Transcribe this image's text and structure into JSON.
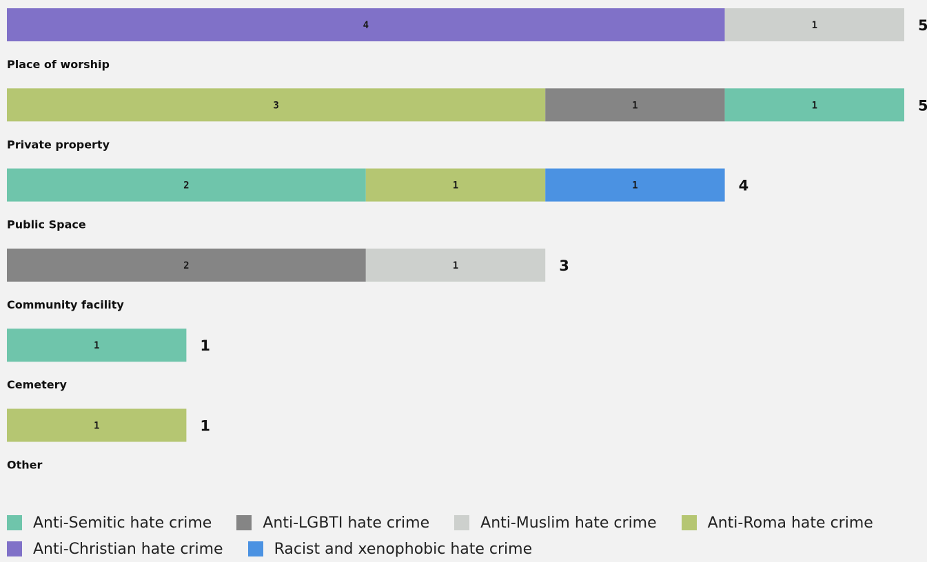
{
  "chart_data": {
    "type": "bar",
    "orientation": "horizontal",
    "stacked": true,
    "categories": [
      "Place of worship",
      "Private property",
      "Public Space",
      "Community facility",
      "Cemetery",
      "Other"
    ],
    "totals": [
      5,
      5,
      4,
      3,
      1,
      1
    ],
    "series": [
      {
        "name": "Anti-Semitic hate crime",
        "color": "#6fc5ab",
        "values": [
          0,
          1,
          2,
          0,
          1,
          0
        ]
      },
      {
        "name": "Anti-LGBTI hate crime",
        "color": "#858585",
        "values": [
          0,
          1,
          0,
          2,
          0,
          0
        ]
      },
      {
        "name": "Anti-Muslim hate crime",
        "color": "#cdd0cd",
        "values": [
          1,
          0,
          0,
          1,
          0,
          0
        ]
      },
      {
        "name": "Anti-Roma hate crime",
        "color": "#b5c672",
        "values": [
          0,
          3,
          1,
          0,
          0,
          1
        ]
      },
      {
        "name": "Anti-Christian hate crime",
        "color": "#8071c8",
        "values": [
          4,
          0,
          0,
          0,
          0,
          0
        ]
      },
      {
        "name": "Racist and xenophobic hate crime",
        "color": "#4b92e2",
        "values": [
          0,
          0,
          1,
          0,
          0,
          0
        ]
      }
    ],
    "segment_order": [
      [
        4,
        2
      ],
      [
        3,
        1,
        0
      ],
      [
        0,
        3,
        5
      ],
      [
        1,
        2
      ],
      [
        0
      ],
      [
        3
      ]
    ],
    "xlim": [
      0,
      5
    ],
    "grid": false,
    "legend_position": "bottom"
  },
  "legend": {
    "rows": [
      [
        0,
        1,
        2,
        3
      ],
      [
        4,
        5
      ]
    ]
  }
}
